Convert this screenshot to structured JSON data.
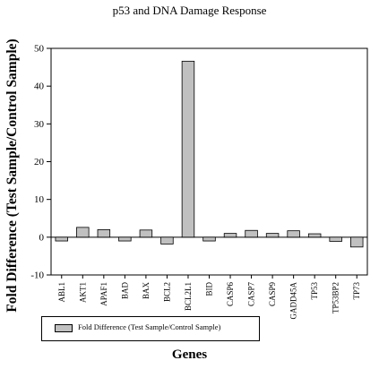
{
  "chart_data": {
    "type": "bar",
    "title": "p53 and DNA Damage Response",
    "xlabel": "Genes",
    "ylabel": "Fold Difference (Test Sample/Control Sample)",
    "ylim": [
      -10,
      50
    ],
    "yticks": [
      -10,
      0,
      10,
      20,
      30,
      40,
      50
    ],
    "grid": false,
    "legend_position": "bottom-left",
    "categories": [
      "ABL1",
      "AKT1",
      "APAF1",
      "BAD",
      "BAX",
      "BCL2",
      "BCL2L1",
      "BID",
      "CASP6",
      "CASP7",
      "CASP9",
      "GADD45A",
      "TP53",
      "TP53BP2",
      "TP73"
    ],
    "series": [
      {
        "name": "Fold Difference (Test Sample/Control Sample)",
        "color": "#c0c0c0",
        "values": [
          -1.0,
          2.6,
          2.0,
          -1.0,
          1.9,
          -1.8,
          46.6,
          -1.0,
          1.0,
          1.8,
          1.0,
          1.7,
          0.9,
          -1.1,
          -2.6
        ]
      }
    ]
  }
}
